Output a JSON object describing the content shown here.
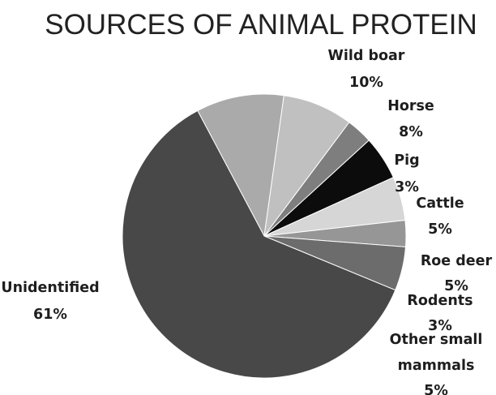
{
  "chart_data": {
    "type": "pie",
    "title": "SOURCES OF ANIMAL PROTEIN",
    "slices": [
      {
        "name": "Wild boar",
        "value": 10,
        "pct": "10%",
        "color": "#aaaaaa"
      },
      {
        "name": "Horse",
        "value": 8,
        "pct": "8%",
        "color": "#c0c0c0"
      },
      {
        "name": "Pig",
        "value": 3,
        "pct": "3%",
        "color": "#7e7e7e"
      },
      {
        "name": "Cattle",
        "value": 5,
        "pct": "5%",
        "color": "#0c0c0c"
      },
      {
        "name": "Roe deer",
        "value": 5,
        "pct": "5%",
        "color": "#d6d6d6"
      },
      {
        "name": "Rodents",
        "value": 3,
        "pct": "3%",
        "color": "#969696"
      },
      {
        "name": "Other small mammals",
        "value": 5,
        "pct": "5%",
        "color": "#6c6c6c"
      },
      {
        "name": "Unidentified",
        "value": 61,
        "pct": "61%",
        "color": "#484848"
      }
    ],
    "legend": "none",
    "data_labels": "category name and percentage"
  }
}
